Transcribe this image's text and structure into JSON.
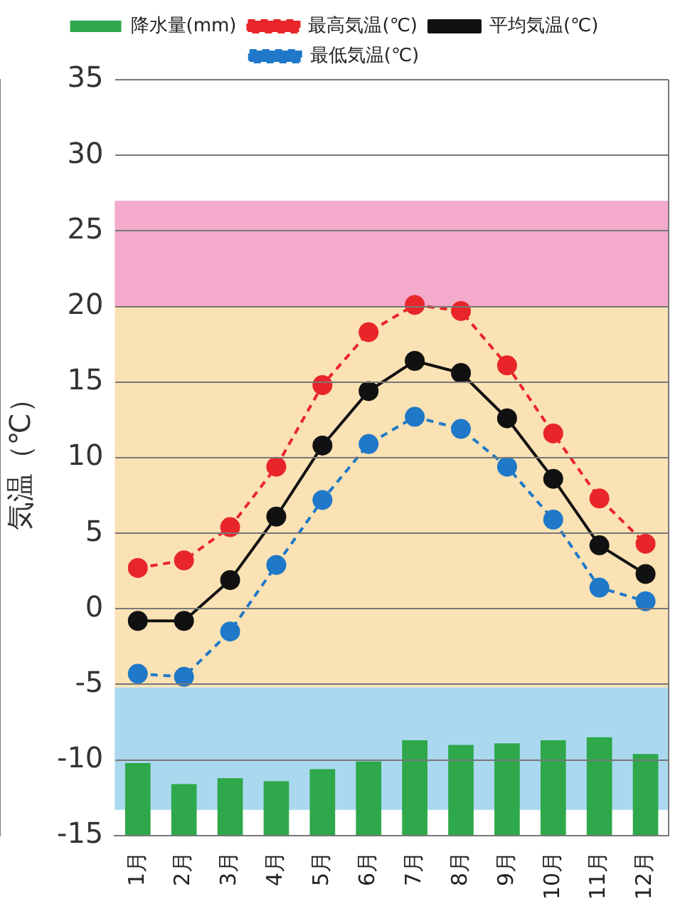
{
  "chart_data": {
    "type": "line",
    "ylabel": "気温（℃）",
    "categories": [
      "1月",
      "2月",
      "3月",
      "4月",
      "5月",
      "6月",
      "7月",
      "8月",
      "9月",
      "10月",
      "11月",
      "12月"
    ],
    "series": [
      {
        "name": "降水量(mm)",
        "type": "bar",
        "color": "#2ea84a",
        "base": [
          -15,
          -15,
          -15,
          -15,
          -15,
          -15,
          -15,
          -15,
          -15,
          -15,
          -15,
          -15
        ],
        "values": [
          4.8,
          3.4,
          3.8,
          3.6,
          4.4,
          4.9,
          6.3,
          6.0,
          6.1,
          6.3,
          6.5,
          5.4
        ]
      },
      {
        "name": "最高気温(℃)",
        "color": "#e8262a",
        "line_style": "dashed",
        "values": [
          2.7,
          3.2,
          5.4,
          9.4,
          14.8,
          18.3,
          20.1,
          19.7,
          16.1,
          11.6,
          7.3,
          4.3
        ]
      },
      {
        "name": "平均気温(℃)",
        "color": "#111111",
        "line_style": "solid",
        "values": [
          -0.8,
          -0.8,
          1.9,
          6.1,
          10.8,
          14.4,
          16.4,
          15.6,
          12.6,
          8.6,
          4.2,
          2.3
        ]
      },
      {
        "name": "最低気温(℃)",
        "color": "#1f78c8",
        "line_style": "dashed",
        "values": [
          -4.3,
          -4.5,
          -1.5,
          2.9,
          7.2,
          10.9,
          12.7,
          11.9,
          9.4,
          5.9,
          1.4,
          0.5
        ]
      }
    ],
    "bands": [
      {
        "axis": "y",
        "from": 20,
        "to": 27,
        "color": "#f3aacb"
      },
      {
        "axis": "y",
        "from": -5.2,
        "to": 20,
        "color": "#fbe2b4"
      },
      {
        "axis": "y",
        "from": -13.3,
        "to": -5.2,
        "color": "#aad9ef"
      }
    ],
    "ylim": [
      -15,
      35
    ],
    "yticks": [
      -15,
      -10,
      -5,
      0,
      5,
      10,
      15,
      20,
      25,
      30,
      35
    ],
    "grid": "y",
    "legend": "top",
    "marker": "circle"
  }
}
